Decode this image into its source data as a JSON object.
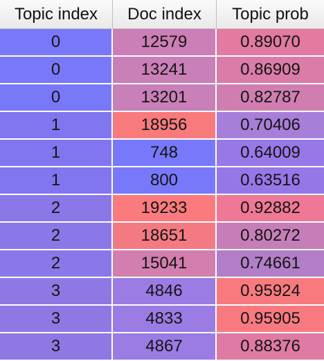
{
  "table": {
    "columns": [
      "Topic index",
      "Doc index",
      "Topic prob"
    ],
    "rows": [
      {
        "topic_index": "0",
        "doc_index": "12579",
        "topic_prob": "0.89070",
        "colors": [
          "#7878f8",
          "#cc7eb6",
          "#e27aa2"
        ]
      },
      {
        "topic_index": "0",
        "doc_index": "13241",
        "topic_prob": "0.86909",
        "colors": [
          "#7878f8",
          "#c97fb8",
          "#da7ca7"
        ]
      },
      {
        "topic_index": "0",
        "doc_index": "13201",
        "topic_prob": "0.82787",
        "colors": [
          "#7878f8",
          "#c97fb8",
          "#d07eb0"
        ]
      },
      {
        "topic_index": "1",
        "doc_index": "18956",
        "topic_prob": "0.70406",
        "colors": [
          "#8076f0",
          "#f97a7c",
          "#a77fd8"
        ]
      },
      {
        "topic_index": "1",
        "doc_index": "748",
        "topic_prob": "0.64009",
        "colors": [
          "#8076f0",
          "#7878fa",
          "#9878e6"
        ]
      },
      {
        "topic_index": "1",
        "doc_index": "800",
        "topic_prob": "0.63516",
        "colors": [
          "#8076f0",
          "#7878fa",
          "#9677e8"
        ]
      },
      {
        "topic_index": "2",
        "doc_index": "19233",
        "topic_prob": "0.92882",
        "colors": [
          "#8a78e8",
          "#fa7a7e",
          "#ee7896"
        ]
      },
      {
        "topic_index": "2",
        "doc_index": "18651",
        "topic_prob": "0.80272",
        "colors": [
          "#8a78e8",
          "#f47a82",
          "#c67eb8"
        ]
      },
      {
        "topic_index": "2",
        "doc_index": "15041",
        "topic_prob": "0.74661",
        "colors": [
          "#8a78e8",
          "#d27eae",
          "#b27ec8"
        ]
      },
      {
        "topic_index": "3",
        "doc_index": "4846",
        "topic_prob": "0.95924",
        "colors": [
          "#9078e4",
          "#9a7ce4",
          "#f87a7e"
        ]
      },
      {
        "topic_index": "3",
        "doc_index": "4833",
        "topic_prob": "0.95905",
        "colors": [
          "#9078e4",
          "#9a7ce4",
          "#f87a80"
        ]
      },
      {
        "topic_index": "3",
        "doc_index": "4867",
        "topic_prob": "0.88376",
        "colors": [
          "#9078e4",
          "#9a7ce4",
          "#de7aa4"
        ]
      }
    ]
  }
}
